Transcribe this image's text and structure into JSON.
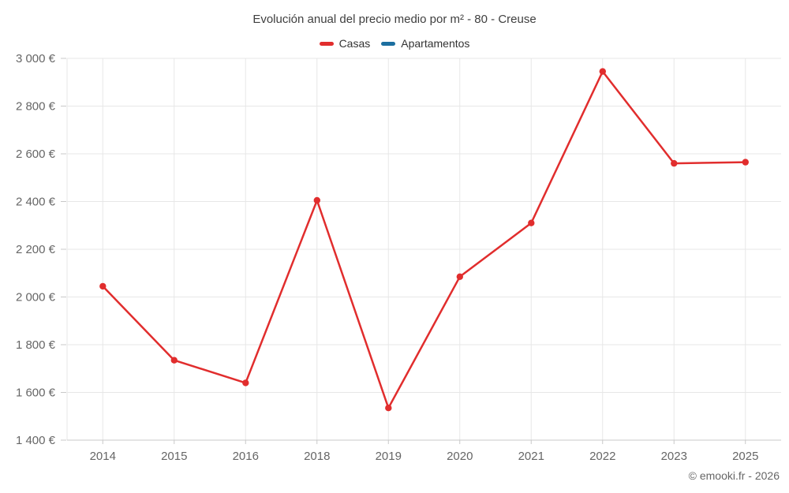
{
  "chart_data": {
    "type": "line",
    "title": "Evolución anual del precio medio por m² - 80 - Creuse",
    "categories": [
      "2014",
      "2015",
      "2016",
      "2018",
      "2019",
      "2020",
      "2021",
      "2022",
      "2023",
      "2025"
    ],
    "series": [
      {
        "name": "Casas",
        "color": "#e12d2d",
        "values": [
          2045,
          1735,
          1640,
          2405,
          1535,
          2085,
          2310,
          2945,
          2560,
          2565
        ]
      },
      {
        "name": "Apartamentos",
        "color": "#1c6fa0",
        "values": []
      }
    ],
    "ylim": [
      1400,
      3000
    ],
    "ytick_step": 200,
    "ytick_suffix": " €",
    "grid": true,
    "legend_position": "top",
    "grid_color": "#e7e7e7",
    "axis_color": "#c8c8c8",
    "label_color": "#666666",
    "background": "#ffffff",
    "credit": "© emooki.fr - 2026"
  }
}
